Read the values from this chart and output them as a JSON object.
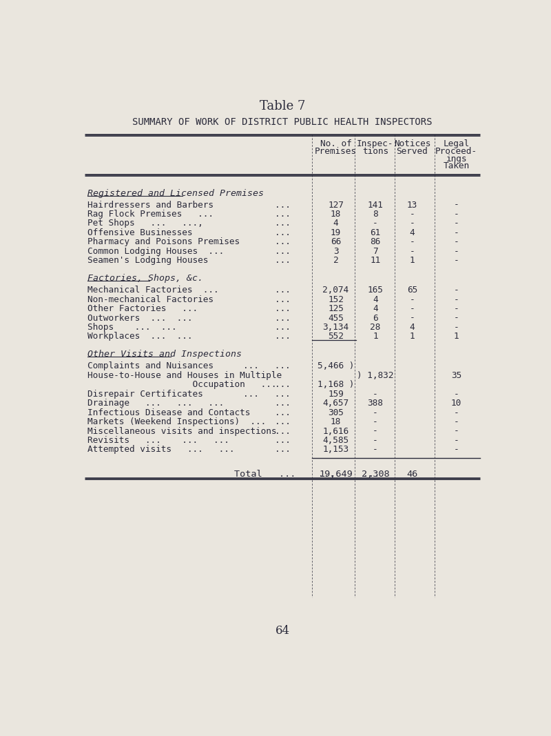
{
  "title": "Table 7",
  "subtitle": "SUMMARY OF WORK OF DISTRICT PUBLIC HEALTH INSPECTORS",
  "bg_color": "#eae6de",
  "text_color": "#2a2a3a",
  "col_headers_line1": [
    "No. of",
    "Inspec-",
    "Notices",
    "Legal"
  ],
  "col_headers_line2": [
    "Premises",
    "tions",
    "Served",
    "Proceed-"
  ],
  "col_headers_line3": [
    "",
    "",
    "",
    "ings"
  ],
  "col_headers_line4": [
    "",
    "",
    "",
    "Taken"
  ],
  "sections": [
    {
      "header": "Registered and Licensed Premises",
      "rows": [
        {
          "label": "Hairdressers and Barbers",
          "dots": "...",
          "cols": [
            "127",
            "141",
            "13",
            "-"
          ]
        },
        {
          "label": "Rag Flock Premises   ...",
          "dots": "...",
          "cols": [
            "18",
            "8",
            "-",
            "-"
          ]
        },
        {
          "label": "Pet Shops   ...   ...,",
          "dots": "...",
          "cols": [
            "4",
            "-",
            "-",
            "-"
          ]
        },
        {
          "label": "Offensive Businesses",
          "dots": "...",
          "cols": [
            "19",
            "61",
            "4",
            "-"
          ]
        },
        {
          "label": "Pharmacy and Poisons Premises",
          "dots": "...",
          "cols": [
            "66",
            "86",
            "-",
            "-"
          ]
        },
        {
          "label": "Common Lodging Houses  ...",
          "dots": "...",
          "cols": [
            "3",
            "7",
            "-",
            "-"
          ]
        },
        {
          "label": "Seamen's Lodging Houses",
          "dots": "...",
          "cols": [
            "2",
            "11",
            "1",
            "-"
          ]
        }
      ]
    },
    {
      "header": "Factories, Shops, &c.",
      "rows": [
        {
          "label": "Mechanical Factories  ...",
          "dots": "...",
          "cols": [
            "2,074",
            "165",
            "65",
            "-"
          ]
        },
        {
          "label": "Non-mechanical Factories",
          "dots": "...",
          "cols": [
            "152",
            "4",
            "-",
            "-"
          ]
        },
        {
          "label": "Other Factories   ...",
          "dots": "...",
          "cols": [
            "125",
            "4",
            "-",
            "-"
          ]
        },
        {
          "label": "Outworkers  ...  ...",
          "dots": "...",
          "cols": [
            "455",
            "6",
            "-",
            "-"
          ]
        },
        {
          "label": "Shops    ...  ...   ",
          "dots": "...",
          "cols": [
            "3,134",
            "28",
            "4",
            "-"
          ]
        },
        {
          "label": "Workplaces  ...  ...",
          "dots": "...",
          "cols": [
            "552",
            "1",
            "1",
            "1"
          ]
        }
      ]
    },
    {
      "header": "Other Visits and Inspections",
      "rows": [
        {
          "label": "Complaints and Nuisances",
          "dots": "...   ...",
          "cols": [
            "5,466 )",
            "",
            "",
            ""
          ]
        },
        {
          "label": "House-to-House and Houses in Multiple",
          "dots": "",
          "cols": [
            "",
            ") 1,832",
            "",
            "35"
          ]
        },
        {
          "label": "                    Occupation   ...",
          "dots": "...",
          "cols": [
            "1,168 )",
            "",
            "",
            ""
          ]
        },
        {
          "label": "Disrepair Certificates",
          "dots": "...   ...",
          "cols": [
            "159",
            "-",
            "",
            "-"
          ]
        },
        {
          "label": "Drainage   ...   ...   ...",
          "dots": "...",
          "cols": [
            "4,657",
            "388",
            "",
            "10"
          ]
        },
        {
          "label": "Infectious Disease and Contacts",
          "dots": "...",
          "cols": [
            "305",
            "-",
            "",
            "-"
          ]
        },
        {
          "label": "Markets (Weekend Inspections)  ...",
          "dots": "...",
          "cols": [
            "18",
            "-",
            "",
            "-"
          ]
        },
        {
          "label": "Miscellaneous visits and inspections",
          "dots": "...",
          "cols": [
            "1,616",
            "-",
            "",
            "-"
          ]
        },
        {
          "label": "Revisits   ...    ...   ...",
          "dots": "...",
          "cols": [
            "4,585",
            "-",
            "",
            "-"
          ]
        },
        {
          "label": "Attempted visits   ...   ...",
          "dots": "...",
          "cols": [
            "1,153",
            "-",
            "",
            "-"
          ]
        }
      ]
    }
  ],
  "total_row": {
    "label": "Total   ...    ...     ...",
    "cols": [
      "19,649",
      "2,308",
      "46",
      ""
    ]
  },
  "page_number": "64"
}
